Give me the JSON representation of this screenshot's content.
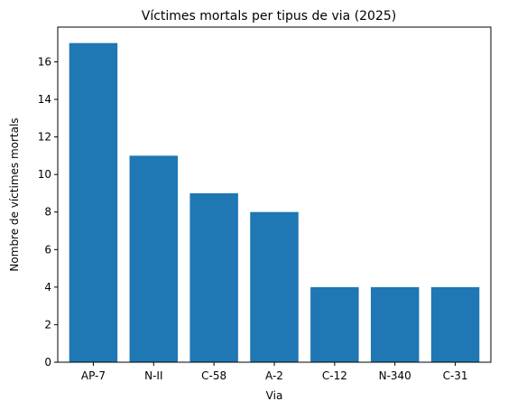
{
  "chart_data": {
    "type": "bar",
    "title": "Víctimes mortals per tipus de via (2025)",
    "xlabel": "Via",
    "ylabel": "Nombre de víctimes mortals",
    "categories": [
      "AP-7",
      "N-II",
      "C-58",
      "A-2",
      "C-12",
      "N-340",
      "C-31"
    ],
    "values": [
      17,
      11,
      9,
      8,
      4,
      4,
      4
    ],
    "ylim": [
      0,
      17.85
    ],
    "yticks": [
      0,
      2,
      4,
      6,
      8,
      10,
      12,
      14,
      16
    ],
    "grid": false,
    "legend": "none",
    "bar_color": "#1f77b4"
  }
}
